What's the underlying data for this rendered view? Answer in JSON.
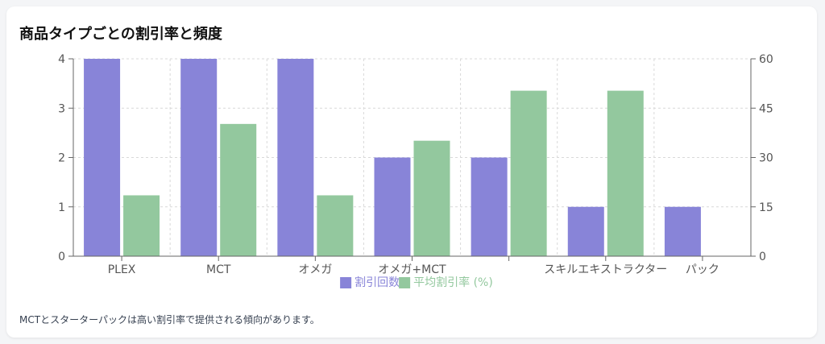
{
  "card": {
    "title": "商品タイプごとの割引率と頻度",
    "note": "MCTとスターターパックは高い割引率で提供される傾向があります。"
  },
  "colors": {
    "count": "#8884d8",
    "rate": "#93c89e",
    "grid": "#d9d9d9",
    "axis": "#666666"
  },
  "chart_data": {
    "type": "bar",
    "categories": [
      "PLEX",
      "MCT",
      "オメガ",
      "オメガ+MCT",
      "",
      "スキルエキストラクター",
      "パック"
    ],
    "series": [
      {
        "name": "割引回数",
        "axis": "left",
        "values": [
          4,
          4,
          4,
          2,
          2,
          1,
          1
        ]
      },
      {
        "name": "平均割引率 (%)",
        "axis": "right",
        "values": [
          18.5,
          40.2,
          18.5,
          35.1,
          50.3,
          50.3,
          0
        ]
      }
    ],
    "y_left": {
      "min": 0,
      "max": 4,
      "ticks": [
        0,
        1,
        2,
        3,
        4
      ]
    },
    "y_right": {
      "min": 0,
      "max": 60,
      "ticks": [
        0,
        15,
        30,
        45,
        60
      ]
    },
    "grid": true,
    "legend_position": "bottom"
  }
}
